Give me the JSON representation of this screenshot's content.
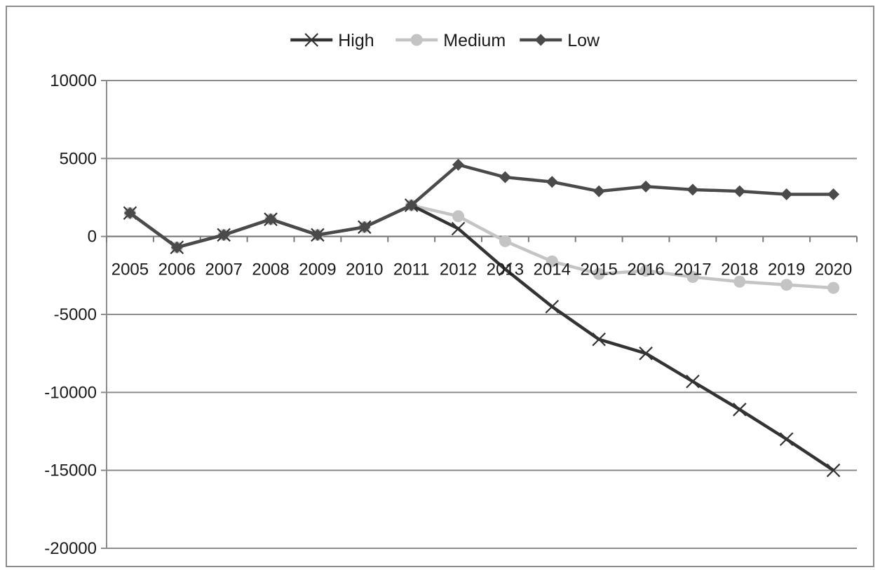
{
  "chart_data": {
    "type": "line",
    "title": "",
    "xlabel": "",
    "ylabel": "",
    "categories": [
      "2005",
      "2006",
      "2007",
      "2008",
      "2009",
      "2010",
      "2011",
      "2012",
      "2013",
      "2014",
      "2015",
      "2016",
      "2017",
      "2018",
      "2019",
      "2020"
    ],
    "ylim": [
      -20000,
      10000
    ],
    "yticks": [
      10000,
      5000,
      0,
      -5000,
      -10000,
      -15000,
      -20000
    ],
    "grid": "horizontal",
    "legend_position": "top",
    "series": [
      {
        "name": "High",
        "color": "#333333",
        "marker": "x",
        "values": [
          1500,
          -700,
          100,
          1100,
          100,
          600,
          2000,
          500,
          -2100,
          -4500,
          -6600,
          -7500,
          -9300,
          -11100,
          -13000,
          -15000
        ]
      },
      {
        "name": "Medium",
        "color": "#c4c4c4",
        "marker": "circle",
        "values": [
          1500,
          -700,
          100,
          1100,
          100,
          600,
          2000,
          1300,
          -300,
          -1600,
          -2400,
          -2200,
          -2600,
          -2900,
          -3100,
          -3300
        ]
      },
      {
        "name": "Low",
        "color": "#4a4a4a",
        "marker": "diamond",
        "values": [
          1500,
          -700,
          100,
          1100,
          100,
          600,
          2000,
          4600,
          3800,
          3500,
          2900,
          3200,
          3000,
          2900,
          2700,
          2700
        ]
      }
    ]
  }
}
